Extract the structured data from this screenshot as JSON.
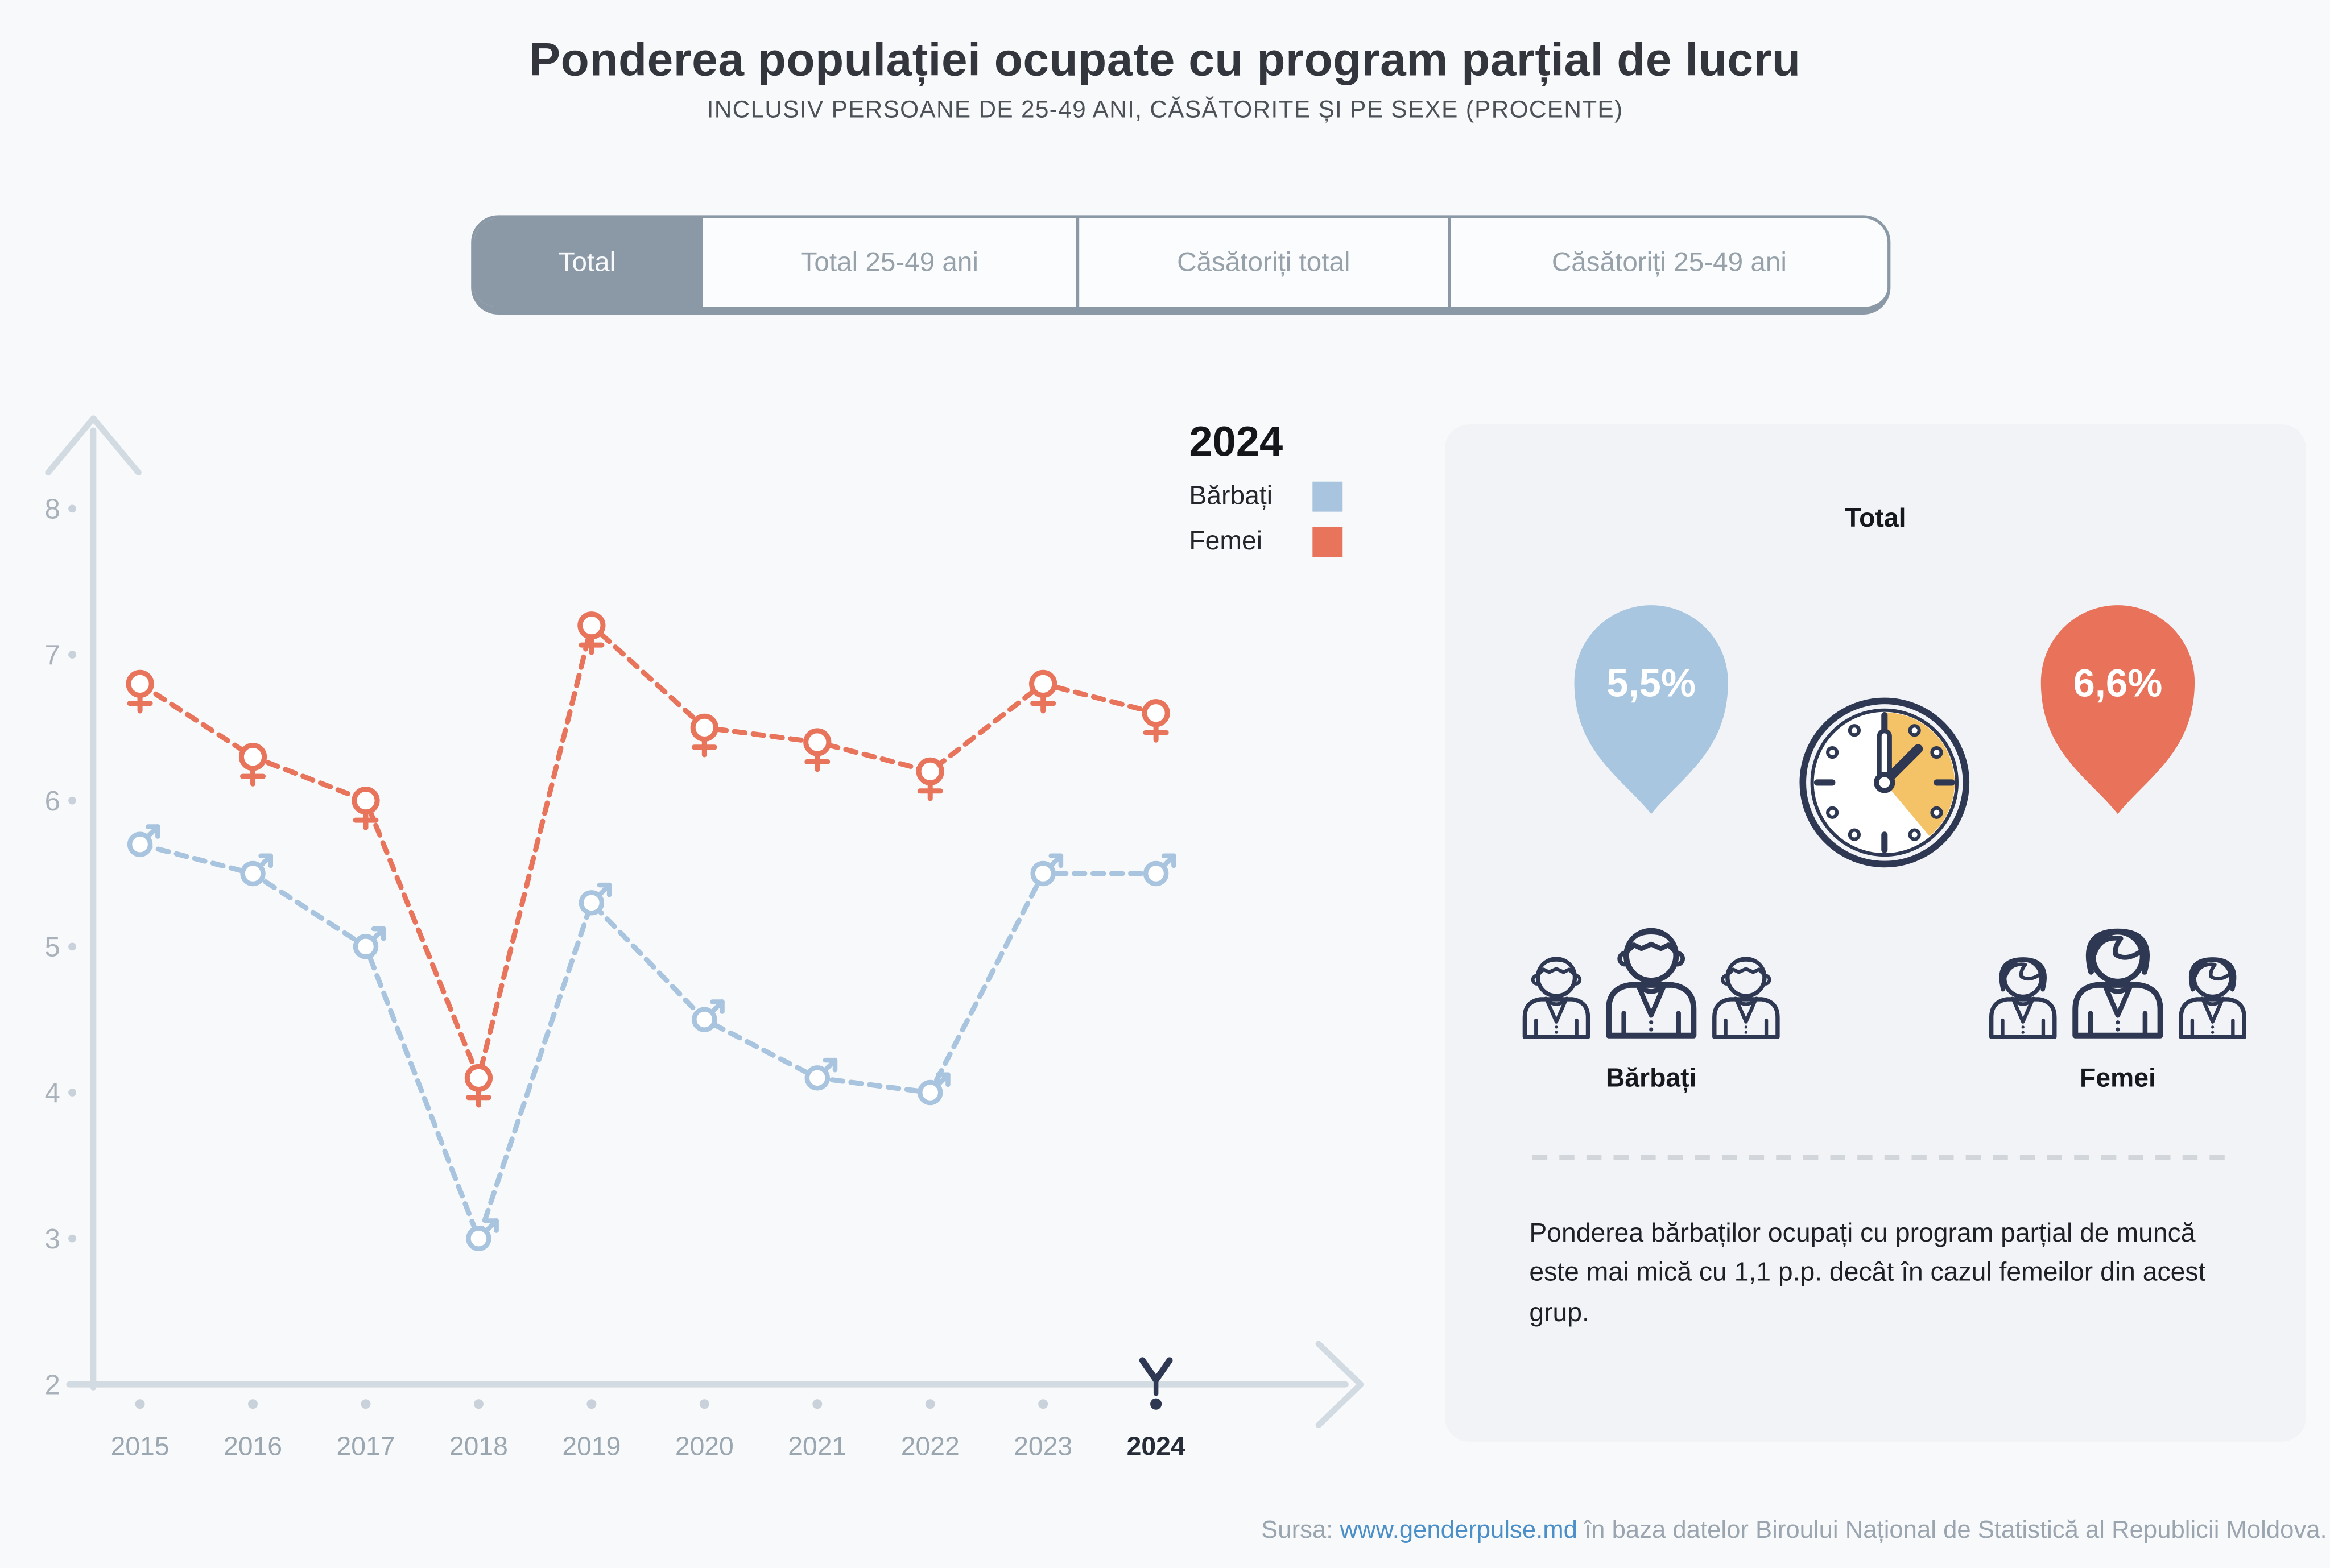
{
  "header": {
    "title": "Ponderea populației ocupate cu program parțial de lucru",
    "subtitle": "INCLUSIV PERSOANE DE 25-49 ANI, CĂSĂTORITE ȘI PE SEXE (PROCENTE)"
  },
  "tabs": [
    {
      "label": "Total",
      "active": true
    },
    {
      "label": "Total 25-49 ani",
      "active": false
    },
    {
      "label": "Căsătoriți total",
      "active": false
    },
    {
      "label": "Căsătoriți 25-49 ani",
      "active": false
    }
  ],
  "legend": {
    "year": "2024",
    "items": [
      {
        "label": "Bărbați",
        "color": "#a8c4de"
      },
      {
        "label": "Femei",
        "color": "#e8745b"
      }
    ]
  },
  "chart_data": {
    "type": "line",
    "title": "Ponderea populației ocupate cu program parțial de lucru",
    "x": [
      2015,
      2016,
      2017,
      2018,
      2019,
      2020,
      2021,
      2022,
      2023,
      2024
    ],
    "series": [
      {
        "name": "Bărbați",
        "marker": "male",
        "color": "#a8c4de",
        "values": [
          5.7,
          5.5,
          5.0,
          3.0,
          5.3,
          4.5,
          4.1,
          4.0,
          5.5,
          5.5
        ]
      },
      {
        "name": "Femei",
        "marker": "female",
        "color": "#e8745b",
        "values": [
          6.8,
          6.3,
          6.0,
          4.1,
          7.2,
          6.5,
          6.4,
          6.2,
          6.8,
          6.6
        ]
      }
    ],
    "ylim": [
      2,
      8.5
    ],
    "yticks": [
      2,
      3,
      4,
      5,
      6,
      7,
      8
    ],
    "highlight_year": 2024,
    "line_style": "dashed",
    "grid": false,
    "legend_position": "top-right",
    "unit": "procente"
  },
  "panel": {
    "heading": "Total",
    "male": {
      "value": "5,5%",
      "label": "Bărbați",
      "color": "#a9c6e1"
    },
    "female": {
      "value": "6,6%",
      "label": "Femei",
      "color": "#e8735a"
    },
    "note": "Ponderea bărbaților ocupați cu program parțial de muncă este mai mică cu 1,1 p.p. decât în cazul femeilor din acest grup."
  },
  "footer": {
    "prefix": "Sursa: ",
    "link": "www.genderpulse.md",
    "suffix": " în baza datelor Biroului Național de Statistică al Republicii Moldova."
  },
  "colors": {
    "background": "#f8f9fa",
    "panel_background": "#f1f3f6",
    "axis": "#d3dbe2",
    "tick_dot": "#c9d2da",
    "axis_label": "#9aa6b0",
    "y_label": "#a9b2ba",
    "highlight_label": "#262c38",
    "tab_accent": "#8b99a7",
    "navy": "#2e3852",
    "clock_wedge": "#f4c368",
    "link": "#4a8fc8",
    "footer_text": "#9aa5af",
    "text_dark": "#1d2127"
  }
}
